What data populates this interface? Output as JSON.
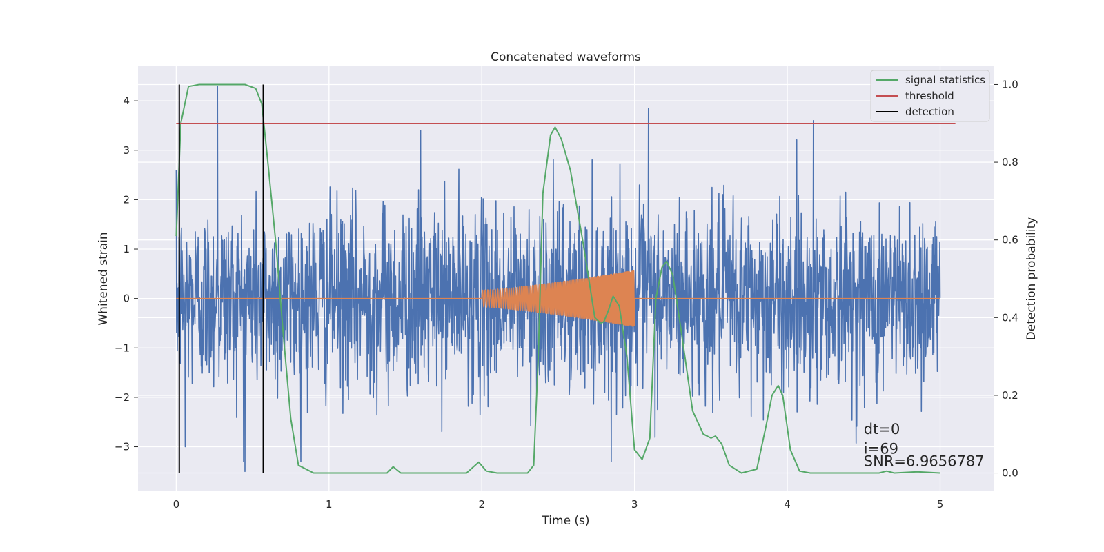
{
  "chart_data": {
    "type": "line",
    "title": "Concatenated waveforms",
    "xlabel": "Time (s)",
    "ylabel": "Whitened strain",
    "ylabel_right": "Detection probability",
    "xlim": [
      -0.25,
      5.35
    ],
    "ylim": [
      -3.9,
      4.7
    ],
    "ylim_right": [
      -0.047,
      1.047
    ],
    "xticks": [
      0,
      1,
      2,
      3,
      4,
      5
    ],
    "yticks": [
      -3,
      -2,
      -1,
      0,
      1,
      2,
      3,
      4
    ],
    "yticks_right": [
      0.0,
      0.2,
      0.4,
      0.6,
      0.8,
      1.0
    ],
    "grid": true,
    "legend_position": "top-right",
    "colors": {
      "strain": "#4c72b0",
      "injection": "#dd8452",
      "signal_statistics": "#55a868",
      "threshold": "#c44e52",
      "detection": "#000000",
      "background": "#eaeaf2"
    },
    "strain_noise": {
      "x_range": [
        0,
        5
      ],
      "typical_amplitude": 1.2,
      "peak_values": [
        {
          "x": 0.27,
          "y": 4.3
        },
        {
          "x": 0.45,
          "y": -3.5
        },
        {
          "x": 1.6,
          "y": 3.4
        },
        {
          "x": 3.09,
          "y": 3.85
        },
        {
          "x": 4.17,
          "y": 3.6
        },
        {
          "x": 0.06,
          "y": -3.0
        }
      ]
    },
    "injection": {
      "x_range": [
        2.0,
        3.0
      ],
      "amplitude_start": 0.17,
      "amplitude_end": 0.57
    },
    "series": [
      {
        "name": "signal statistics",
        "axis": "right",
        "x": [
          0.0,
          0.03,
          0.08,
          0.15,
          0.3,
          0.45,
          0.52,
          0.56,
          0.6,
          0.65,
          0.7,
          0.75,
          0.8,
          0.9,
          1.2,
          1.38,
          1.42,
          1.47,
          1.55,
          1.9,
          1.98,
          2.03,
          2.1,
          2.3,
          2.34,
          2.37,
          2.4,
          2.45,
          2.48,
          2.52,
          2.58,
          2.66,
          2.74,
          2.78,
          2.8,
          2.83,
          2.86,
          2.9,
          2.95,
          3.0,
          3.05,
          3.1,
          3.14,
          3.18,
          3.21,
          3.25,
          3.3,
          3.38,
          3.45,
          3.5,
          3.53,
          3.57,
          3.62,
          3.7,
          3.8,
          3.86,
          3.9,
          3.94,
          3.97,
          4.02,
          4.08,
          4.15,
          4.3,
          4.6,
          4.65,
          4.7,
          4.85,
          5.0
        ],
        "y": [
          0.61,
          0.9,
          0.995,
          1.0,
          1.0,
          1.0,
          0.99,
          0.95,
          0.8,
          0.6,
          0.36,
          0.14,
          0.02,
          0.0,
          0.0,
          0.0,
          0.016,
          0.0,
          0.0,
          0.0,
          0.028,
          0.005,
          0.0,
          0.0,
          0.02,
          0.3,
          0.72,
          0.87,
          0.89,
          0.86,
          0.78,
          0.6,
          0.4,
          0.385,
          0.39,
          0.42,
          0.455,
          0.43,
          0.3,
          0.06,
          0.035,
          0.09,
          0.45,
          0.53,
          0.545,
          0.51,
          0.38,
          0.16,
          0.1,
          0.09,
          0.095,
          0.075,
          0.02,
          0.0,
          0.01,
          0.12,
          0.2,
          0.225,
          0.2,
          0.06,
          0.005,
          0.0,
          0.0,
          0.0,
          0.005,
          0.0,
          0.003,
          0.0
        ]
      },
      {
        "name": "threshold",
        "axis": "right",
        "x": [
          0.0,
          5.1
        ],
        "y": [
          0.9,
          0.9
        ]
      },
      {
        "name": "detection",
        "axis": "right",
        "type": "vlines",
        "x": [
          0.02,
          0.57
        ],
        "y_range": [
          0.0,
          1.0
        ]
      }
    ],
    "annotations": [
      {
        "text": "dt=0",
        "x": 4.5,
        "y_right": 0.1
      },
      {
        "text": "i=69",
        "x": 4.5,
        "y_right": 0.05
      },
      {
        "text": "SNR=6.9656787",
        "x": 4.5,
        "y_right": 0.018
      }
    ]
  }
}
